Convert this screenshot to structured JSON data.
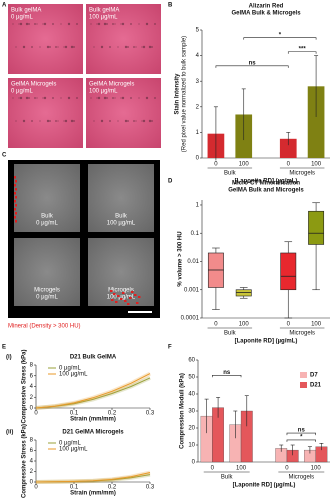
{
  "figure": {
    "panel_labels": [
      "A",
      "B",
      "C",
      "D",
      "E",
      "F"
    ],
    "panel_a": {
      "tiles": [
        [
          "Bulk gelMA",
          "0 µg/mL"
        ],
        [
          "Bulk gelMA",
          "100 µg/mL"
        ],
        [
          "GelMA Microgels",
          "0 µg/mL"
        ],
        [
          "GelMA Microgels",
          "100 µg/mL"
        ]
      ]
    },
    "panel_c": {
      "tiles": [
        [
          "Bulk",
          "0 µg/mL"
        ],
        [
          "Bulk",
          "100 µg/mL"
        ],
        [
          "Microgels",
          "0 µg/mL"
        ],
        [
          "Microgels",
          "100 µg/mL"
        ]
      ],
      "caption": "Mineral (Density > 300 HU)"
    }
  },
  "chart_data": [
    {
      "type": "bar",
      "title": [
        "Alizarin Red",
        "GelMA Bulk & Microgels"
      ],
      "ylabel": [
        "Stain Intensity",
        "(Red pixel value normalized to bulk sample)"
      ],
      "xlabel": "[Laponite RD] (µg/mL)",
      "categories": [
        "0",
        "100",
        "0",
        "100"
      ],
      "groups": [
        "Bulk",
        "Microgels"
      ],
      "values": [
        0.95,
        1.7,
        0.75,
        2.8
      ],
      "errors": [
        1.05,
        1.0,
        0.25,
        1.2
      ],
      "colors": [
        "#d42a2f",
        "#7f8113",
        "#d42a2f",
        "#7f8113"
      ],
      "ylim": [
        0,
        5
      ],
      "yticks": [
        0,
        1,
        2,
        3,
        4,
        5
      ],
      "significance": [
        {
          "from": 0,
          "to": 2,
          "label": "ns"
        },
        {
          "from": 2,
          "to": 3,
          "label": "***"
        },
        {
          "from": 1,
          "to": 3,
          "label": "*"
        }
      ]
    },
    {
      "type": "box",
      "title": [
        "Micro-CT Mineralisation",
        "GelMA Bulk and Microgels"
      ],
      "ylabel": [
        "% volume > 300 HU"
      ],
      "xlabel": "[Laponite RD] (µg/mL)",
      "categories": [
        "0",
        "100",
        "0",
        "100"
      ],
      "groups": [
        "Bulk",
        "Microgels"
      ],
      "boxes": [
        {
          "min": 0.0002,
          "q1": 0.0012,
          "median": 0.005,
          "q3": 0.02,
          "max": 0.03
        },
        {
          "min": 0.0005,
          "q1": 0.0006,
          "median": 0.0008,
          "q3": 0.001,
          "max": 0.0012
        },
        {
          "min": 0.0001,
          "q1": 0.001,
          "median": 0.003,
          "q3": 0.02,
          "max": 0.05
        },
        {
          "min": 0.001,
          "q1": 0.04,
          "median": 0.1,
          "q3": 0.6,
          "max": 1.2
        }
      ],
      "colors": [
        "#f28b8b",
        "#c9c43a",
        "#e8282e",
        "#8c9a12"
      ],
      "log_scale": true,
      "ylim": [
        0.0001,
        1.5
      ],
      "yticks": [
        0.0001,
        0.001,
        0.01,
        0.1,
        1
      ]
    },
    {
      "type": "line",
      "label": "(i)",
      "title": [
        "D21 Bulk GelMA"
      ],
      "xlabel": "Strain (mm/mm)",
      "ylabel": [
        "Compressive Stress (kPa)"
      ],
      "x": [
        0,
        0.05,
        0.1,
        0.15,
        0.2,
        0.25,
        0.3
      ],
      "series": [
        {
          "name": "0 µg/mL",
          "color": "#9aa03a",
          "values": [
            0,
            0.3,
            0.8,
            1.6,
            2.7,
            4.0,
            5.6
          ]
        },
        {
          "name": "100 µg/mL",
          "color": "#e89a2a",
          "values": [
            0,
            0.35,
            0.95,
            1.9,
            3.1,
            4.6,
            6.4
          ]
        }
      ],
      "xlim": [
        0,
        0.3
      ],
      "ylim": [
        0,
        8
      ],
      "xticks": [
        0,
        0.1,
        0.2,
        0.3
      ],
      "yticks": [
        0,
        2,
        4,
        6,
        8
      ]
    },
    {
      "type": "line",
      "label": "(ii)",
      "title": [
        "D21 GelMA  Microgels"
      ],
      "xlabel": "Strain (mm/mm)",
      "ylabel": [
        "Compressive Stress (kPa)"
      ],
      "x": [
        0,
        0.05,
        0.1,
        0.15,
        0.2,
        0.25,
        0.3
      ],
      "series": [
        {
          "name": "0 µg/mL",
          "color": "#9aa03a",
          "values": [
            0,
            0.05,
            0.1,
            0.2,
            0.4,
            0.8,
            1.4
          ]
        },
        {
          "name": "100 µg/mL",
          "color": "#e89a2a",
          "values": [
            0,
            0.05,
            0.12,
            0.25,
            0.5,
            1.0,
            1.8
          ]
        }
      ],
      "xlim": [
        0,
        0.3
      ],
      "ylim": [
        0,
        8
      ],
      "xticks": [
        0,
        0.1,
        0.2,
        0.3
      ],
      "yticks": [
        0,
        2,
        4,
        6,
        8
      ]
    },
    {
      "type": "grouped_bar",
      "ylabel": [
        "Compression Moduli (kPa)"
      ],
      "xlabel": "[Laponite RD] (µg/mL)",
      "categories": [
        "0",
        "100",
        "0",
        "100"
      ],
      "groups": [
        "Bulk",
        "Microgels"
      ],
      "series": [
        {
          "name": "D7",
          "color": "#f7b3b3",
          "values": [
            27,
            22,
            8,
            7
          ],
          "errors": [
            10,
            8,
            2,
            2
          ]
        },
        {
          "name": "D21",
          "color": "#e4575b",
          "values": [
            32,
            30,
            7,
            9
          ],
          "errors": [
            6,
            9,
            3,
            2
          ]
        }
      ],
      "ylim": [
        0,
        60
      ],
      "yticks": [
        0,
        10,
        20,
        30,
        40,
        50,
        60
      ],
      "significance": [
        {
          "from": 0,
          "to": 1,
          "label": "ns"
        },
        {
          "from": 2,
          "to": 3,
          "label": "ns"
        },
        {
          "from": 2,
          "to": 3,
          "label": "*"
        }
      ]
    }
  ]
}
